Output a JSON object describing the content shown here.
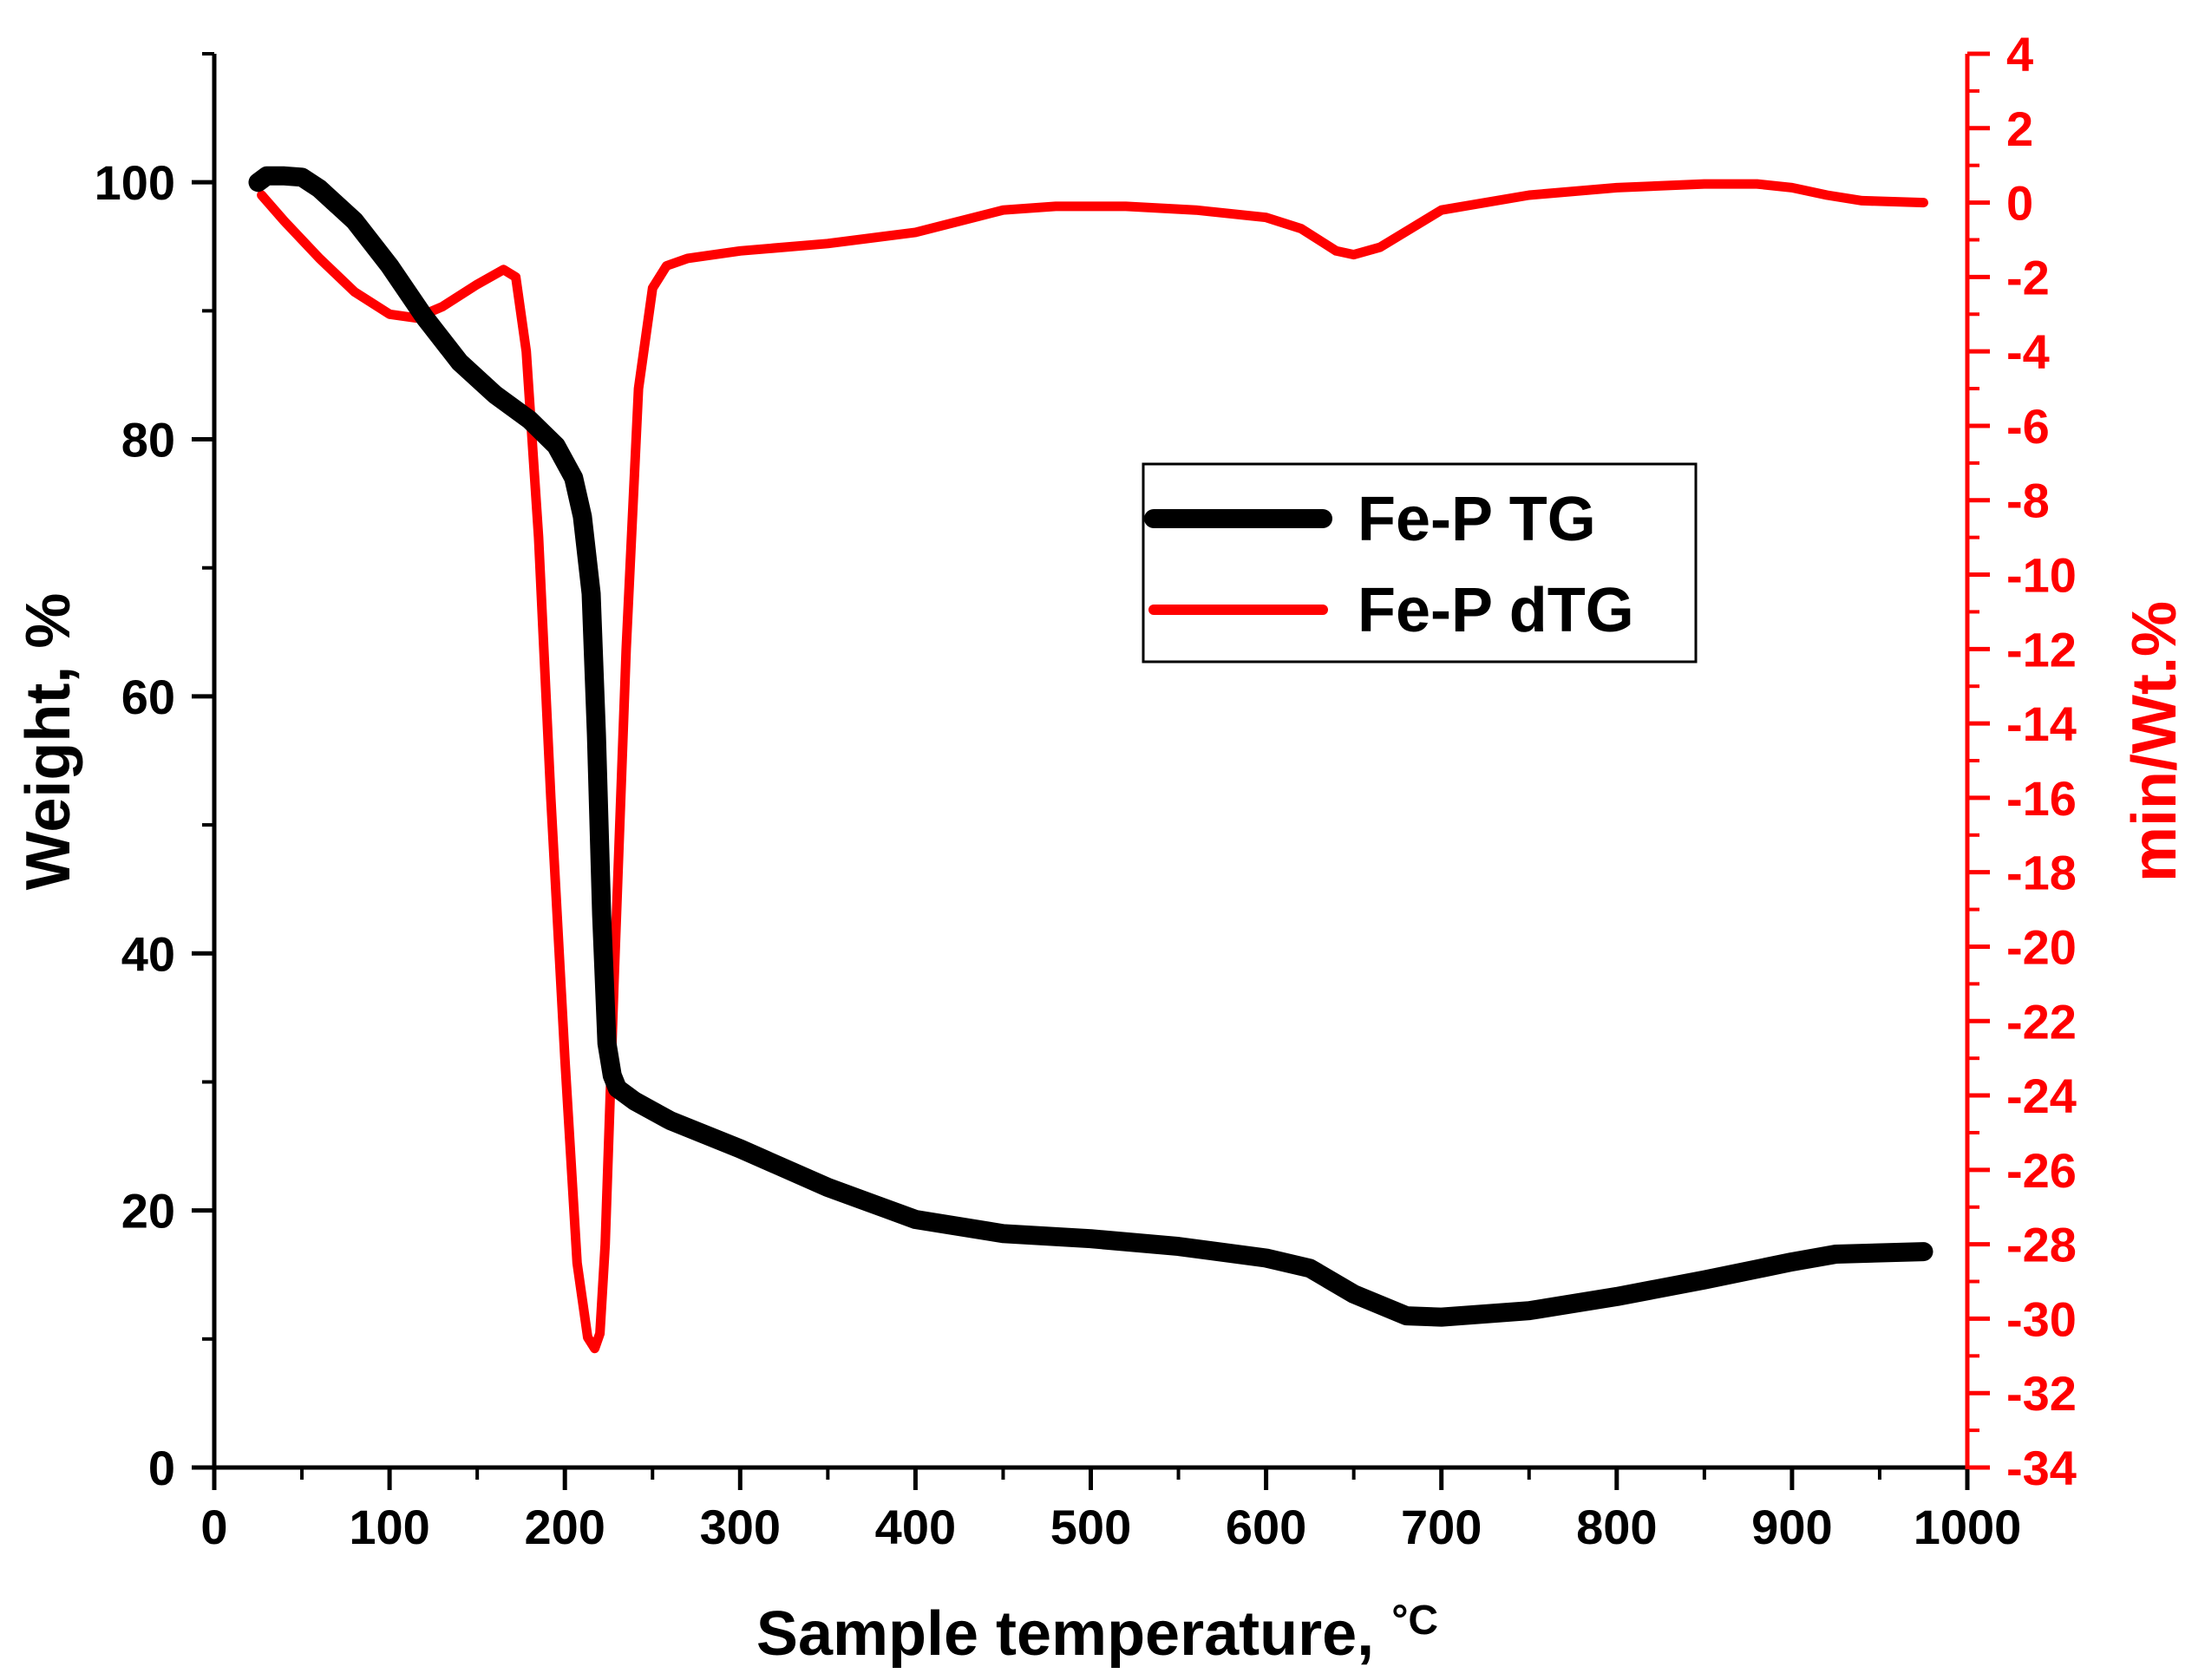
{
  "chart_data": {
    "type": "line",
    "title": "",
    "xlabel": "Sample temperature, ",
    "xlabel_unit": "°C",
    "ylabel_left": "Weight, %",
    "ylabel_right": "min/Wt.%",
    "xlim": [
      0,
      1000
    ],
    "ylim_left": [
      0,
      110
    ],
    "ylim_right": [
      -34,
      4
    ],
    "x_ticks": [
      0,
      100,
      200,
      300,
      400,
      500,
      600,
      700,
      800,
      900,
      1000
    ],
    "x_tick_labels": [
      "0",
      "100",
      "200",
      "300",
      "400",
      "500",
      "600",
      "700",
      "800",
      "900",
      "1000"
    ],
    "y_left_ticks": [
      0,
      20,
      40,
      60,
      80,
      100
    ],
    "y_left_tick_labels": [
      "0",
      "20",
      "40",
      "60",
      "80",
      "100"
    ],
    "y_right_ticks": [
      4,
      2,
      0,
      -2,
      -4,
      -6,
      -8,
      -10,
      -12,
      -14,
      -16,
      -18,
      -20,
      -22,
      -24,
      -26,
      -28,
      -30,
      -32,
      -34
    ],
    "y_right_tick_labels": [
      "4",
      "2",
      "0",
      "-2",
      "-4",
      "-6",
      "-8",
      "-10",
      "-12",
      "-14",
      "-16",
      "-18",
      "-20",
      "-22",
      "-24",
      "-26",
      "-28",
      "-30",
      "-32",
      "-34"
    ],
    "grid": false,
    "legend_position": "upper-right-center",
    "colors": {
      "tg": "#000000",
      "dtg": "#ff0000",
      "right_axis": "#ff0000"
    },
    "series": [
      {
        "name": "Fe-P TG",
        "axis": "left",
        "x": [
          25,
          30,
          40,
          50,
          60,
          80,
          100,
          120,
          140,
          160,
          180,
          195,
          205,
          210,
          215,
          218,
          221,
          224,
          227,
          230,
          240,
          260,
          300,
          350,
          400,
          450,
          500,
          550,
          600,
          625,
          650,
          680,
          700,
          750,
          800,
          850,
          900,
          925,
          975
        ],
        "y": [
          100,
          100.5,
          100.5,
          100.4,
          99.5,
          97,
          93.5,
          89.5,
          86,
          83.5,
          81.5,
          79.5,
          77,
          74,
          68,
          57,
          43,
          33,
          30.5,
          29.5,
          28.5,
          27,
          24.8,
          21.8,
          19.3,
          18.2,
          17.8,
          17.2,
          16.3,
          15.5,
          13.5,
          11.8,
          11.7,
          12.2,
          13.3,
          14.6,
          16,
          16.6,
          16.8
        ]
      },
      {
        "name": "Fe-P dTG",
        "axis": "right",
        "x": [
          27,
          40,
          60,
          80,
          100,
          115,
          130,
          150,
          165,
          172,
          178,
          185,
          192,
          200,
          207,
          213,
          217,
          220,
          223,
          228,
          235,
          242,
          250,
          258,
          270,
          300,
          350,
          400,
          450,
          480,
          520,
          560,
          600,
          620,
          640,
          650,
          665,
          700,
          750,
          800,
          850,
          880,
          900,
          920,
          940,
          975
        ],
        "y": [
          0.2,
          -0.5,
          -1.5,
          -2.4,
          -3,
          -3.1,
          -2.8,
          -2.2,
          -1.8,
          -2,
          -4,
          -9,
          -16,
          -23,
          -28.5,
          -30.5,
          -30.8,
          -30.4,
          -28,
          -21,
          -12,
          -5,
          -2.3,
          -1.7,
          -1.5,
          -1.3,
          -1.1,
          -0.8,
          -0.2,
          -0.1,
          -0.1,
          -0.2,
          -0.4,
          -0.7,
          -1.3,
          -1.4,
          -1.2,
          -0.2,
          0.2,
          0.4,
          0.5,
          0.5,
          0.4,
          0.2,
          0.05,
          0
        ]
      }
    ]
  }
}
